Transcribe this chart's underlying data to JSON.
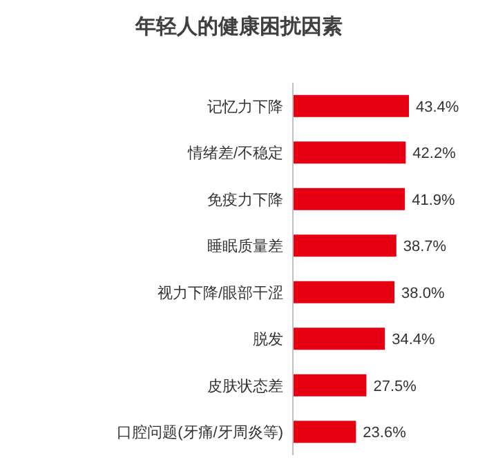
{
  "chart_data": {
    "type": "bar",
    "orientation": "horizontal",
    "title": "年轻人的健康困扰因素",
    "categories": [
      "记忆力下降",
      "情绪差/不稳定",
      "免疫力下降",
      "睡眠质量差",
      "视力下降/眼部干涩",
      "脱发",
      "皮肤状态差",
      "口腔问题(牙痛/牙周炎等)"
    ],
    "values": [
      43.4,
      42.2,
      41.9,
      38.7,
      38.0,
      34.4,
      27.5,
      23.6
    ],
    "value_labels": [
      "43.4%",
      "42.2%",
      "41.9%",
      "38.7%",
      "38.0%",
      "34.4%",
      "27.5%",
      "23.6%"
    ],
    "color": "#e60012"
  }
}
